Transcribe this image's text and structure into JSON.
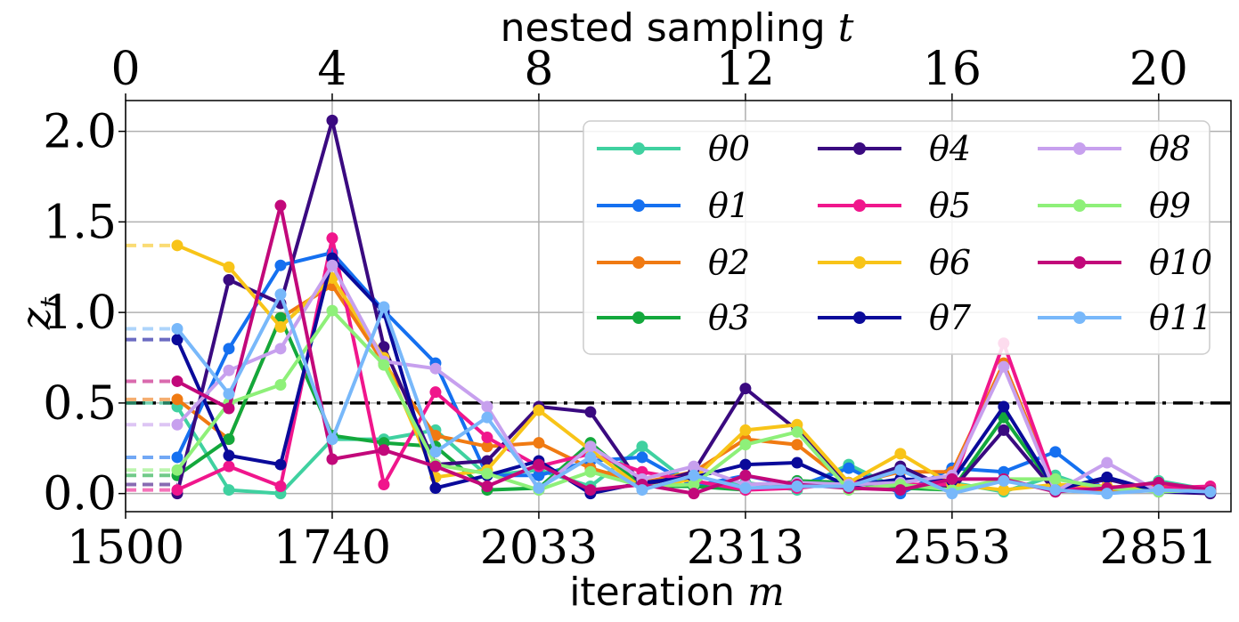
{
  "chart_data": {
    "type": "line",
    "xlabel": "iteration m",
    "x2label": "nested sampling t",
    "ylabel": "z_t",
    "x_ticks": [
      0,
      4,
      8,
      12,
      16,
      20
    ],
    "x_ticks_bottom": [
      "1500",
      "1740",
      "2033",
      "2313",
      "2553",
      "2851"
    ],
    "y_ticks": [
      "0.0",
      "0.5",
      "1.0",
      "1.5",
      "2.0"
    ],
    "xlim": [
      0,
      21.4
    ],
    "ylim": [
      -0.1,
      2.17
    ],
    "threshold": 0.5,
    "grid": true,
    "legend_position": "top-right",
    "x": [
      1,
      2,
      3,
      4,
      5,
      6,
      7,
      8,
      9,
      10,
      11,
      12,
      13,
      14,
      15,
      16,
      17,
      18,
      19,
      20,
      21
    ],
    "series": [
      {
        "name": "θ0",
        "color": "#3fd1a0",
        "initial": 0.5,
        "values": [
          0.48,
          0.02,
          0.0,
          0.3,
          0.3,
          0.35,
          0.1,
          0.13,
          0.04,
          0.26,
          0.04,
          0.06,
          0.02,
          0.16,
          0.02,
          0.06,
          0.01,
          0.1,
          0.0,
          0.07,
          0.02
        ]
      },
      {
        "name": "θ1",
        "color": "#1570f0",
        "initial": 0.2,
        "values": [
          0.2,
          0.8,
          1.26,
          1.33,
          1.01,
          0.72,
          0.1,
          0.1,
          0.18,
          0.2,
          0.04,
          0.1,
          0.04,
          0.14,
          0.0,
          0.14,
          0.12,
          0.23,
          0.01,
          0.02,
          0.03
        ]
      },
      {
        "name": "θ2",
        "color": "#f07a12",
        "initial": 0.52,
        "values": [
          0.52,
          0.3,
          0.97,
          1.15,
          0.72,
          0.32,
          0.26,
          0.28,
          0.14,
          0.06,
          0.12,
          0.3,
          0.27,
          0.05,
          0.12,
          0.12,
          0.72,
          0.03,
          0.01,
          0.05,
          0.01
        ]
      },
      {
        "name": "θ3",
        "color": "#13a83c",
        "initial": 0.1,
        "values": [
          0.1,
          0.3,
          0.97,
          0.32,
          0.28,
          0.26,
          0.02,
          0.03,
          0.28,
          0.04,
          0.04,
          0.02,
          0.07,
          0.06,
          0.03,
          0.02,
          0.42,
          0.02,
          0.08,
          0.02,
          0.02
        ]
      },
      {
        "name": "θ4",
        "color": "#3a0a80",
        "initial": 0.05,
        "values": [
          0.0,
          1.18,
          1.05,
          2.06,
          0.81,
          0.16,
          0.18,
          0.48,
          0.45,
          0.04,
          0.12,
          0.58,
          0.35,
          0.05,
          0.15,
          0.02,
          0.35,
          0.01,
          0.08,
          0.01,
          0.0
        ]
      },
      {
        "name": "θ5",
        "color": "#f0168c",
        "initial": 0.02,
        "values": [
          0.02,
          0.15,
          0.04,
          1.41,
          0.05,
          0.56,
          0.31,
          0.15,
          0.22,
          0.12,
          0.07,
          0.02,
          0.03,
          0.06,
          0.05,
          0.05,
          0.83,
          0.03,
          0.03,
          0.03,
          0.04
        ]
      },
      {
        "name": "θ6",
        "color": "#f8c418",
        "initial": 1.37,
        "values": [
          1.37,
          1.25,
          0.92,
          1.19,
          0.75,
          0.09,
          0.13,
          0.46,
          0.24,
          0.03,
          0.08,
          0.35,
          0.38,
          0.06,
          0.22,
          0.05,
          0.02,
          0.05,
          0.04,
          0.02,
          0.01
        ]
      },
      {
        "name": "θ7",
        "color": "#0a0a9a",
        "initial": 0.85,
        "values": [
          0.85,
          0.21,
          0.16,
          1.3,
          1.0,
          0.03,
          0.1,
          0.18,
          0.0,
          0.06,
          0.09,
          0.16,
          0.17,
          0.04,
          0.08,
          0.07,
          0.48,
          0.02,
          0.09,
          0.01,
          0.01
        ]
      },
      {
        "name": "θ8",
        "color": "#c7a0ee",
        "initial": 0.38,
        "values": [
          0.38,
          0.68,
          0.8,
          1.26,
          0.73,
          0.69,
          0.48,
          0.02,
          0.26,
          0.08,
          0.15,
          0.05,
          0.06,
          0.05,
          0.06,
          0.1,
          0.7,
          0.01,
          0.17,
          0.01,
          0.02
        ]
      },
      {
        "name": "θ9",
        "color": "#8ef079",
        "initial": 0.13,
        "values": [
          0.13,
          0.5,
          0.6,
          1.01,
          0.71,
          0.16,
          0.11,
          0.02,
          0.12,
          0.04,
          0.05,
          0.27,
          0.34,
          0.02,
          0.05,
          0.02,
          0.08,
          0.08,
          0.03,
          0.01,
          0.02
        ]
      },
      {
        "name": "θ10",
        "color": "#c2087a",
        "initial": 0.62,
        "values": [
          0.62,
          0.47,
          1.59,
          0.19,
          0.24,
          0.15,
          0.04,
          0.16,
          0.02,
          0.05,
          0.0,
          0.1,
          0.05,
          0.03,
          0.02,
          0.08,
          0.08,
          0.01,
          0.03,
          0.06,
          0.02
        ]
      },
      {
        "name": "θ11",
        "color": "#78b8fa",
        "initial": 0.91,
        "values": [
          0.91,
          0.55,
          1.1,
          0.3,
          1.03,
          0.23,
          0.42,
          0.03,
          0.2,
          0.02,
          0.1,
          0.03,
          0.04,
          0.04,
          0.13,
          0.0,
          0.07,
          0.02,
          0.0,
          0.02,
          0.01
        ]
      }
    ]
  }
}
